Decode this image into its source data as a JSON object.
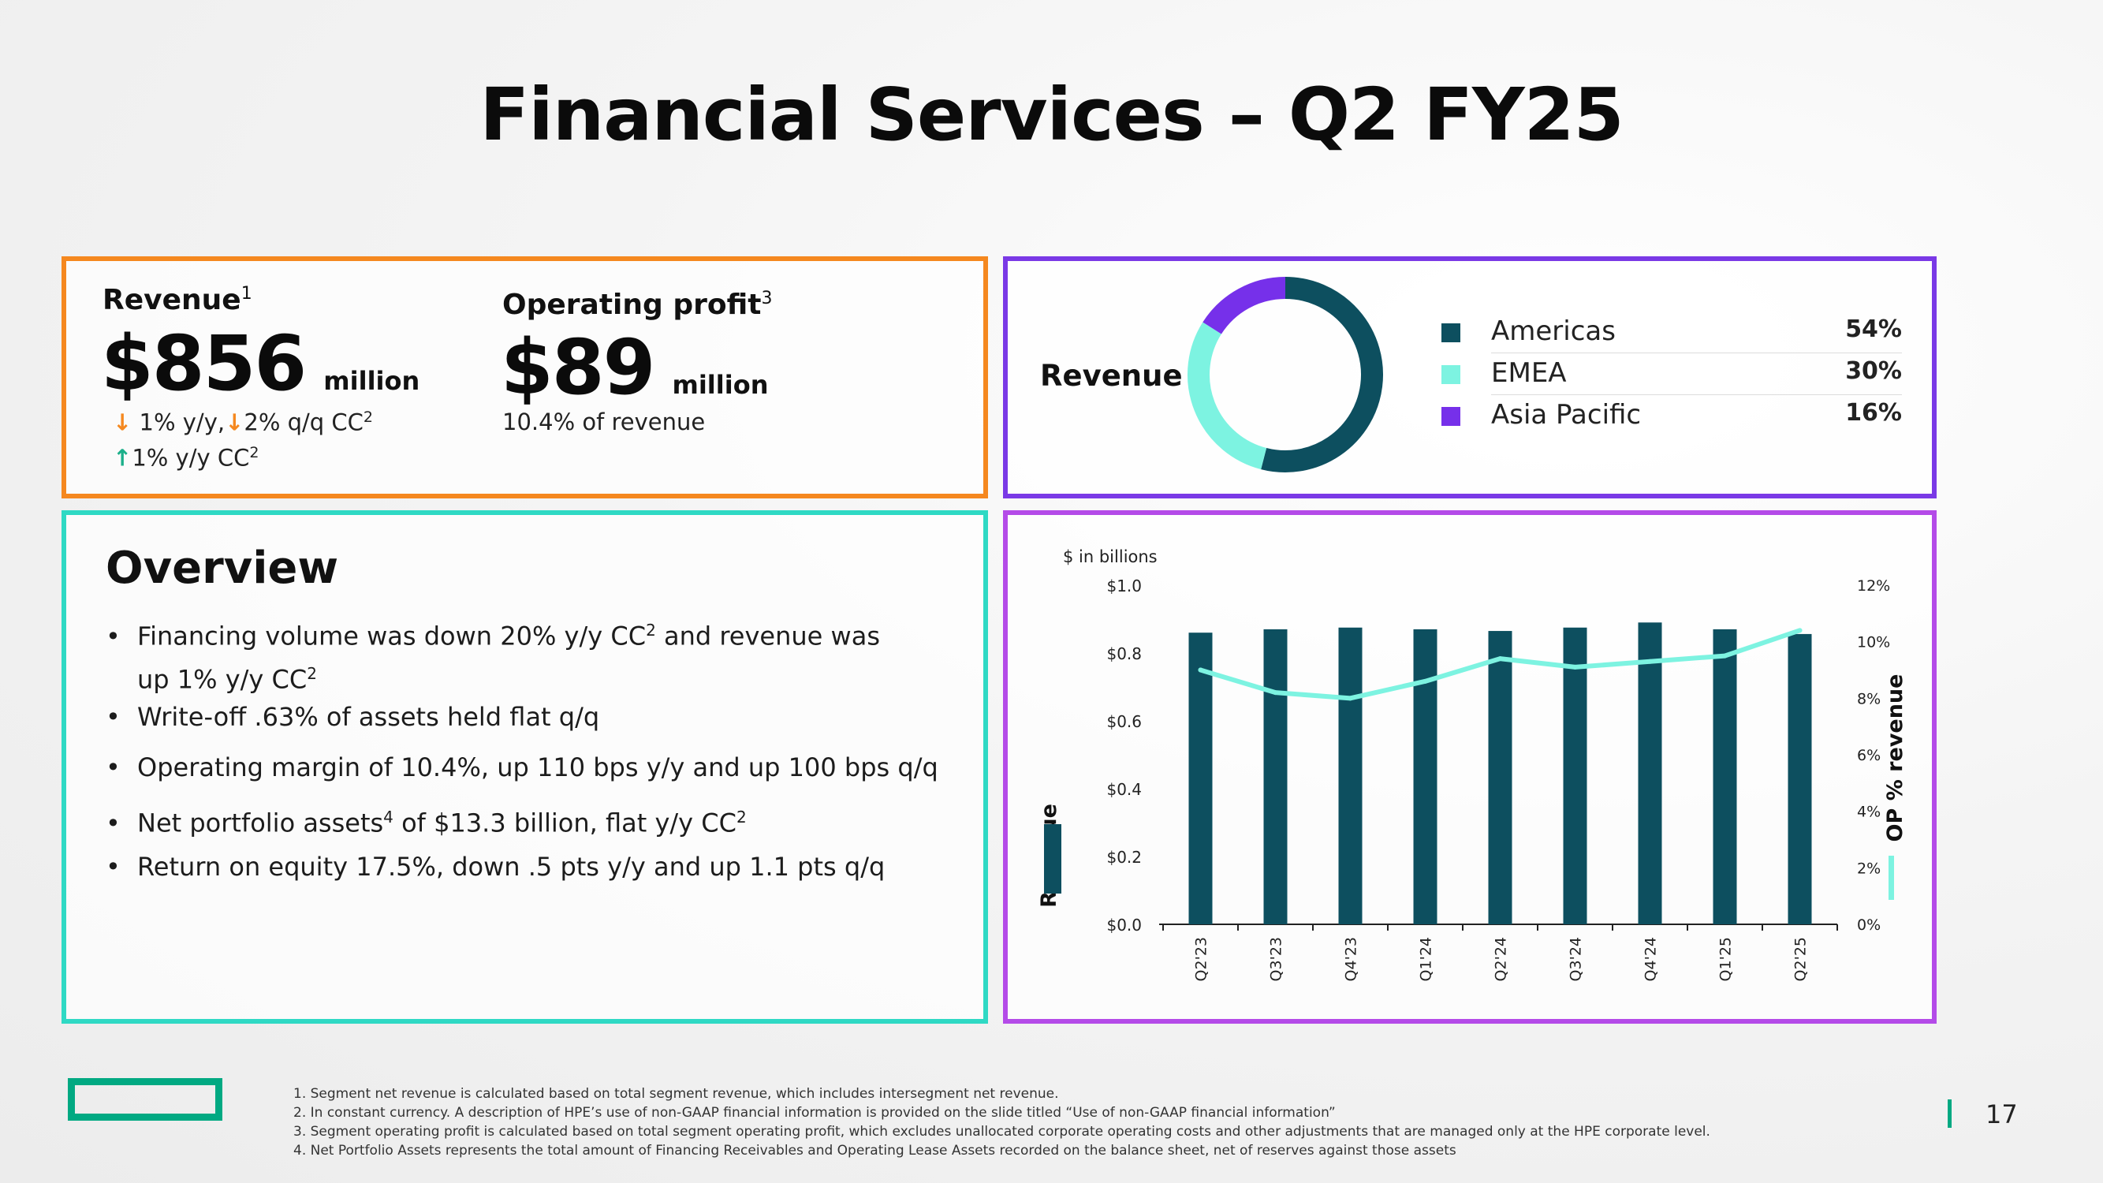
{
  "title": "Financial Services – Q2 FY25",
  "kpi": {
    "revenue_label": "Revenue",
    "revenue_sup": "1",
    "revenue_value": "$856",
    "revenue_unit": "million",
    "rev_line1_a": "1% y/y,",
    "rev_line1_b": "2% q/q CC",
    "rev_line1_sup": "2",
    "rev_line2": "1% y/y CC",
    "rev_line2_sup": "2",
    "op_label": "Operating profit",
    "op_sup": "3",
    "op_value": "$89",
    "op_unit": "million",
    "op_sub": "10.4% of revenue"
  },
  "donut": {
    "label": "Revenue",
    "items": [
      {
        "name": "Americas",
        "pct": "54%",
        "value": 54,
        "color": "#0D4F5F"
      },
      {
        "name": "EMEA",
        "pct": "30%",
        "value": 30,
        "color": "#7DF3E1"
      },
      {
        "name": "Asia Pacific",
        "pct": "16%",
        "value": 16,
        "color": "#7630EA"
      }
    ]
  },
  "overview": {
    "title": "Overview",
    "b1a": "Financing volume was down 20% y/y CC",
    "b1sup": "2",
    "b1b": " and revenue was",
    "b1c": "up 1% y/y CC",
    "b1csup": "2",
    "b2": "Write-off .63% of assets held flat q/q",
    "b3": "Operating margin of 10.4%, up 110 bps y/y and up 100 bps q/q",
    "b4a": "Net portfolio assets",
    "b4sup": "4",
    "b4b": " of $13.3 billion, flat y/y CC",
    "b4sup2": "2",
    "b5": "Return on equity 17.5%, down .5 pts y/y and up 1.1 pts q/q"
  },
  "chart_data": {
    "type": "bar",
    "title": "",
    "units_note": "$ in billions",
    "categories": [
      "Q2'23",
      "Q3'23",
      "Q4'23",
      "Q1'24",
      "Q2'24",
      "Q3'24",
      "Q4'24",
      "Q1'25",
      "Q2'25"
    ],
    "series": [
      {
        "name": "Revenue",
        "type": "bar",
        "axis": "left",
        "color": "#0D4F5F",
        "values": [
          0.86,
          0.87,
          0.875,
          0.87,
          0.865,
          0.875,
          0.89,
          0.87,
          0.856
        ]
      },
      {
        "name": "OP % revenue",
        "type": "line",
        "axis": "right",
        "color": "#7DF3E1",
        "values": [
          9.0,
          8.2,
          8.0,
          8.6,
          9.4,
          9.1,
          9.3,
          9.5,
          10.4
        ]
      }
    ],
    "ylabel_left": "Revenue",
    "ylabel_right": "OP % revenue",
    "ylim_left": [
      0,
      1.0
    ],
    "yticks_left": [
      "$0.0",
      "$0.2",
      "$0.4",
      "$0.6",
      "$0.8",
      "$1.0"
    ],
    "ylim_right": [
      0,
      12
    ],
    "yticks_right": [
      "0%",
      "2%",
      "4%",
      "6%",
      "8%",
      "10%",
      "12%"
    ],
    "grid": false
  },
  "footnotes": [
    "1.  Segment net revenue is calculated based on total segment revenue, which includes intersegment net revenue.",
    "2.  In constant currency. A description of HPE’s use of non-GAAP financial information is provided on the slide titled “Use of non-GAAP financial information”",
    "3.  Segment operating profit is calculated based on total segment operating profit, which excludes unallocated corporate operating costs and other adjustments that are managed only at the HPE corporate level.",
    "4.  Net Portfolio Assets represents the total amount of Financing Receivables and Operating Lease Assets recorded on the balance sheet, net of reserves against those assets"
  ],
  "page_number": "17"
}
